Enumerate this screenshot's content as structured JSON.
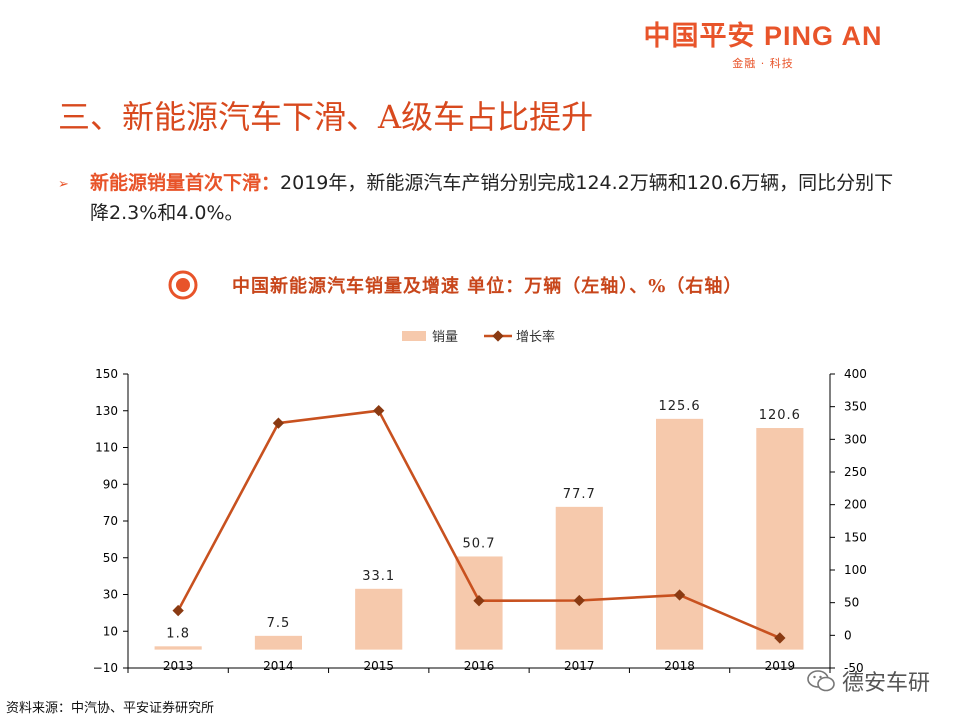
{
  "logo": {
    "main": "中国平安 PING AN",
    "sub": "金融 · 科技"
  },
  "title": "三、新能源汽车下滑、A级车占比提升",
  "bullet": {
    "lead": "新能源销量首次下滑：",
    "text": "2019年，新能源汽车产销分别完成124.2万辆和120.6万辆，同比分别下降2.3%和4.0%。"
  },
  "chart_heading": "中国新能源汽车销量及增速 单位：万辆（左轴）、%（右轴）",
  "chart_data": {
    "type": "bar",
    "categories": [
      "2013",
      "2014",
      "2015",
      "2016",
      "2017",
      "2018",
      "2019"
    ],
    "series": [
      {
        "name": "销量",
        "type": "bar",
        "axis": "left",
        "color": "#f6c9ac",
        "values": [
          1.8,
          7.5,
          33.1,
          50.7,
          77.7,
          125.6,
          120.6
        ],
        "labels": [
          "1.8",
          "7.5",
          "33.1",
          "50.7",
          "77.7",
          "125.6",
          "120.6"
        ]
      },
      {
        "name": "增长率",
        "type": "line",
        "axis": "right",
        "color": "#c8511f",
        "values": [
          37.9,
          324.8,
          343.9,
          53.0,
          53.3,
          61.7,
          -4.0
        ]
      }
    ],
    "y_left": {
      "min": -10,
      "max": 150,
      "ticks": [
        "150",
        "130",
        "110",
        "90",
        "70",
        "50",
        "30",
        "10",
        "−10"
      ]
    },
    "y_right": {
      "min": -50,
      "max": 400,
      "ticks": [
        "400",
        "350",
        "300",
        "250",
        "200",
        "150",
        "100",
        "50",
        "0",
        "-50"
      ]
    },
    "legend_position": "top-center"
  },
  "source": "资料来源：中汽协、平安证券研究所",
  "watermark": "德安车研"
}
